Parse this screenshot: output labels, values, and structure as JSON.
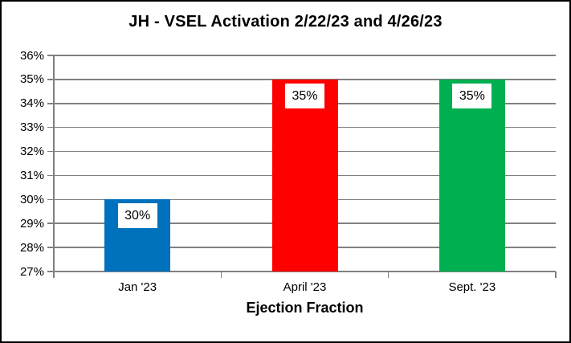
{
  "chart_data": {
    "type": "bar",
    "title": "JH - VSEL Activation 2/22/23 and 4/26/23",
    "categories": [
      "Jan '23",
      "April '23",
      "Sept. '23"
    ],
    "values": [
      30,
      35,
      35
    ],
    "data_labels": [
      "30%",
      "35%",
      "35%"
    ],
    "bar_colors": [
      "#0071BC",
      "#FF0000",
      "#00AF50"
    ],
    "xlabel": "Ejection Fraction",
    "ylabel": "",
    "ylim": [
      27,
      36
    ],
    "ytick_step": 1,
    "ytick_labels": [
      "27%",
      "28%",
      "29%",
      "30%",
      "31%",
      "32%",
      "33%",
      "34%",
      "35%",
      "36%"
    ],
    "grid": true,
    "legend_position": "none",
    "colors": {
      "gridline": "#808080",
      "axis": "#808080",
      "text": "#000000",
      "background": "#FFFFFF",
      "frame_border": "#000000",
      "data_label_bg": "#FFFFFF"
    }
  }
}
